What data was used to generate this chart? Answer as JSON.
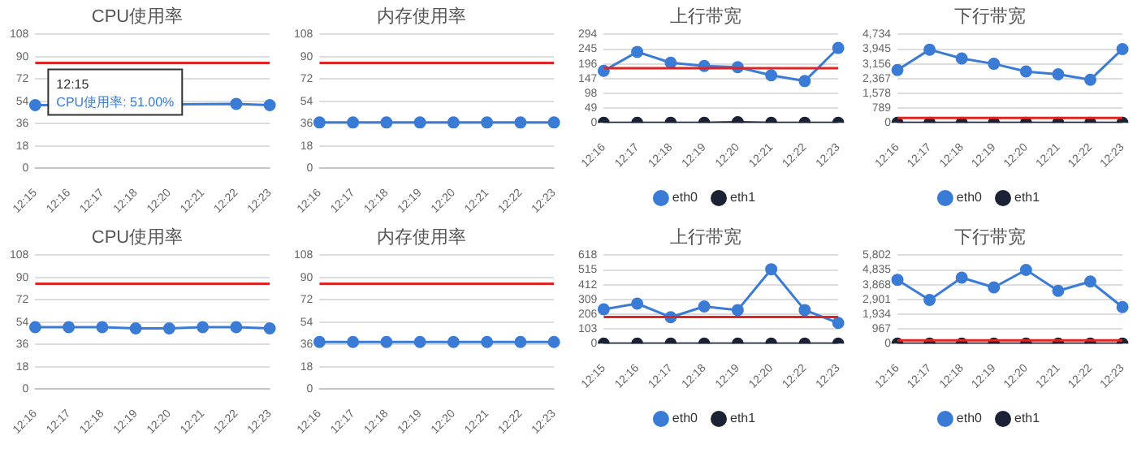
{
  "chart_data": [
    {
      "type": "line",
      "title": "CPU使用率",
      "categories": [
        "12:15",
        "12:16",
        "12:17",
        "12:18",
        "12:20",
        "12:21",
        "12:22",
        "12:23"
      ],
      "series": [
        {
          "color": "#3a7bd5",
          "values": [
            51,
            null,
            null,
            null,
            null,
            null,
            52,
            51
          ]
        }
      ],
      "ylim": [
        0,
        108
      ],
      "yticks": [
        0,
        18,
        36,
        54,
        72,
        90,
        108
      ],
      "ref_lines": [
        {
          "axis": "y",
          "value": 85,
          "color": "#e02424"
        }
      ],
      "annotations": [
        {
          "text": "12:15\nCPU使用率: 51.00%",
          "x": "12:15",
          "y": 51
        }
      ],
      "grid": "y",
      "marker": "circle",
      "legend": false
    },
    {
      "type": "line",
      "title": "内存使用率",
      "categories": [
        "12:16",
        "12:17",
        "12:18",
        "12:19",
        "12:20",
        "12:21",
        "12:22",
        "12:23"
      ],
      "series": [
        {
          "color": "#3a7bd5",
          "values": [
            37,
            37,
            37,
            37,
            37,
            37,
            37,
            37
          ]
        }
      ],
      "ylim": [
        0,
        108
      ],
      "yticks": [
        0,
        18,
        36,
        54,
        72,
        90,
        108
      ],
      "ref_lines": [
        {
          "axis": "y",
          "value": 85,
          "color": "#e02424"
        }
      ],
      "grid": "y",
      "marker": "circle",
      "legend": false
    },
    {
      "type": "line",
      "title": "上行带宽",
      "categories": [
        "12:16",
        "12:17",
        "12:18",
        "12:19",
        "12:20",
        "12:21",
        "12:22",
        "12:23"
      ],
      "series": [
        {
          "name": "eth0",
          "color": "#3a7bd5",
          "values": [
            173,
            236,
            200,
            189,
            185,
            158,
            139,
            249
          ]
        },
        {
          "name": "eth1",
          "color": "#1a2233",
          "values": [
            0,
            0,
            0,
            0,
            2,
            0,
            0,
            0
          ]
        }
      ],
      "ylim": [
        0,
        294
      ],
      "yticks": [
        0,
        49,
        98,
        147,
        196,
        245,
        294
      ],
      "ref_lines": [
        {
          "axis": "y",
          "value": 182,
          "color": "#e02424"
        }
      ],
      "grid": "y",
      "marker": "circle",
      "legend": "bottom"
    },
    {
      "type": "line",
      "title": "下行带宽",
      "categories": [
        "12:16",
        "12:17",
        "12:18",
        "12:19",
        "12:20",
        "12:21",
        "12:22",
        "12:23"
      ],
      "series": [
        {
          "name": "eth0",
          "color": "#3a7bd5",
          "values": [
            2830,
            3920,
            3450,
            3160,
            2750,
            2600,
            2310,
            3950
          ]
        },
        {
          "name": "eth1",
          "color": "#1a2233",
          "values": [
            0,
            0,
            0,
            0,
            0,
            0,
            0,
            0
          ]
        }
      ],
      "ylim": [
        0,
        4734
      ],
      "yticks": [
        0,
        789,
        {
          "value": 1578,
          "label": "1,578"
        },
        {
          "value": 2367,
          "label": "2,367"
        },
        {
          "value": 3156,
          "label": "3,156"
        },
        {
          "value": 3945,
          "label": "3,945"
        },
        {
          "value": 4734,
          "label": "4,734"
        }
      ],
      "ref_lines": [
        {
          "axis": "y",
          "value": 260,
          "color": "#e02424"
        }
      ],
      "grid": "y",
      "marker": "circle",
      "legend": "bottom"
    },
    {
      "type": "line",
      "title": "CPU使用率",
      "categories": [
        "12:16",
        "12:17",
        "12:18",
        "12:19",
        "12:20",
        "12:21",
        "12:22",
        "12:23"
      ],
      "series": [
        {
          "color": "#3a7bd5",
          "values": [
            50,
            50,
            50,
            49,
            49,
            50,
            50,
            49
          ]
        }
      ],
      "ylim": [
        0,
        108
      ],
      "yticks": [
        0,
        18,
        36,
        54,
        72,
        90,
        108
      ],
      "ref_lines": [
        {
          "axis": "y",
          "value": 85,
          "color": "#e02424"
        }
      ],
      "grid": "y",
      "marker": "circle",
      "legend": false
    },
    {
      "type": "line",
      "title": "内存使用率",
      "categories": [
        "12:16",
        "12:17",
        "12:18",
        "12:19",
        "12:20",
        "12:21",
        "12:22",
        "12:23"
      ],
      "series": [
        {
          "color": "#3a7bd5",
          "values": [
            38,
            38,
            38,
            38,
            38,
            38,
            38,
            38
          ]
        }
      ],
      "ylim": [
        0,
        108
      ],
      "yticks": [
        0,
        18,
        36,
        54,
        72,
        90,
        108
      ],
      "ref_lines": [
        {
          "axis": "y",
          "value": 85,
          "color": "#e02424"
        }
      ],
      "grid": "y",
      "marker": "circle",
      "legend": false
    },
    {
      "type": "line",
      "title": "上行带宽",
      "categories": [
        "12:15",
        "12:16",
        "12:17",
        "12:18",
        "12:19",
        "12:20",
        "12:22",
        "12:23"
      ],
      "series": [
        {
          "name": "eth0",
          "color": "#3a7bd5",
          "values": [
            240,
            280,
            185,
            260,
            235,
            520,
            235,
            145
          ]
        },
        {
          "name": "eth1",
          "color": "#1a2233",
          "values": [
            0,
            0,
            0,
            0,
            0,
            0,
            0,
            0
          ]
        }
      ],
      "ylim": [
        0,
        618
      ],
      "yticks": [
        0,
        103,
        206,
        309,
        412,
        515,
        618
      ],
      "ref_lines": [
        {
          "axis": "y",
          "value": 187,
          "color": "#e02424"
        }
      ],
      "grid": "y",
      "marker": "circle",
      "legend": "bottom"
    },
    {
      "type": "line",
      "title": "下行带宽",
      "categories": [
        "12:16",
        "12:17",
        "12:18",
        "12:19",
        "12:20",
        "12:21",
        "12:22",
        "12:23"
      ],
      "series": [
        {
          "name": "eth0",
          "color": "#3a7bd5",
          "values": [
            4190,
            2870,
            4330,
            3690,
            4840,
            3470,
            4080,
            2400
          ]
        },
        {
          "name": "eth1",
          "color": "#1a2233",
          "values": [
            0,
            0,
            0,
            0,
            0,
            0,
            0,
            0
          ]
        }
      ],
      "ylim": [
        0,
        5802
      ],
      "yticks": [
        0,
        967,
        {
          "value": 1934,
          "label": "1,934"
        },
        {
          "value": 2901,
          "label": "2,901"
        },
        {
          "value": 3868,
          "label": "3,868"
        },
        {
          "value": 4835,
          "label": "4,835"
        },
        {
          "value": 5802,
          "label": "5,802"
        }
      ],
      "ref_lines": [
        {
          "axis": "y",
          "value": 215,
          "color": "#e02424"
        }
      ],
      "grid": "y",
      "marker": "circle",
      "legend": "bottom"
    }
  ]
}
